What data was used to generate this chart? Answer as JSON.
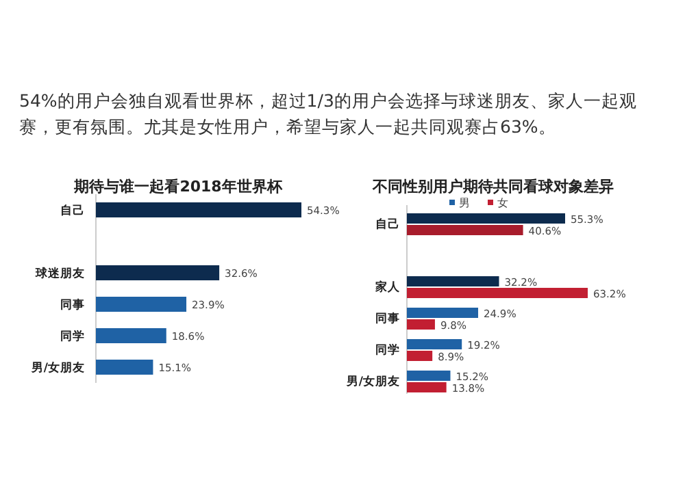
{
  "chart_data": [
    {
      "type": "bar",
      "orientation": "horizontal",
      "title": "期待与谁一起看2018年世界杯",
      "annotations": [
        "54%的用户会独自观看世界杯，超过1/3的用户会选择与球迷朋友、家人一起观赛，更有氛围。尤其是女性用户，希望与家人一起共同观赛占63%。"
      ],
      "categories": [
        "自己",
        null,
        "球迷朋友",
        "同事",
        "同学",
        "男/女朋友"
      ],
      "values": [
        54.3,
        null,
        32.6,
        23.9,
        18.6,
        15.1
      ],
      "colors": [
        "#0d2b4e",
        null,
        "#0d2b4e",
        "#1f62a5",
        "#1f62a5",
        "#1f62a5"
      ],
      "value_labels": [
        "54.3%",
        null,
        "32.6%",
        "23.9%",
        "18.6%",
        "15.1%"
      ]
    },
    {
      "type": "bar",
      "orientation": "horizontal",
      "title": "不同性别用户期待共同看球对象差异",
      "legend": "top",
      "categories": [
        "自己",
        null,
        "家人",
        "同事",
        "同学",
        "男/女朋友"
      ],
      "series": [
        {
          "name": "男",
          "color": "#1f62a5",
          "colors": [
            "#0d2b4e",
            null,
            "#0d2b4e",
            "#1f62a5",
            "#1f62a5",
            "#1f62a5"
          ],
          "values": [
            55.3,
            null,
            32.2,
            24.9,
            19.2,
            15.2
          ],
          "value_labels": [
            "55.3%",
            null,
            "32.2%",
            "24.9%",
            "19.2%",
            "15.2%"
          ]
        },
        {
          "name": "女",
          "color": "#c21f32",
          "colors": [
            "#a81c2c",
            null,
            "#c21f32",
            "#c21f32",
            "#c21f32",
            "#c21f32"
          ],
          "values": [
            40.6,
            null,
            63.2,
            9.8,
            8.9,
            13.8
          ],
          "value_labels": [
            "40.6%",
            null,
            "63.2%",
            "9.8%",
            "8.9%",
            "13.8%"
          ]
        }
      ]
    }
  ]
}
